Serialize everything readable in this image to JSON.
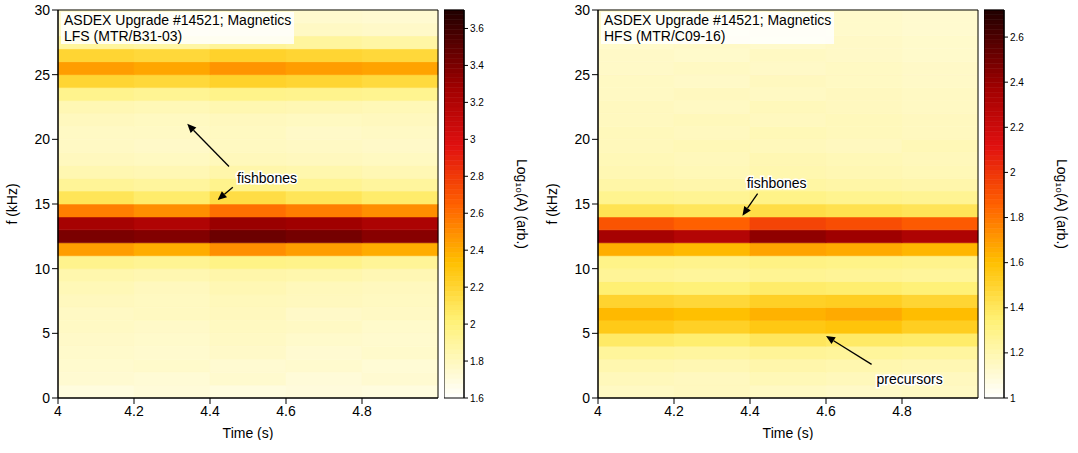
{
  "chart_data": [
    {
      "type": "heatmap",
      "title": "ASDEX Upgrade #14521; Magnetics",
      "subtitle": "LFS (MTR/B31-03)",
      "x_label": "Time (s)",
      "y_label": "f (kHz)",
      "xlim": [
        4,
        5
      ],
      "xticks": [
        4,
        4.2,
        4.4,
        4.6,
        4.8
      ],
      "ylim": [
        0,
        30
      ],
      "yticks": [
        0,
        5,
        10,
        15,
        20,
        25,
        30
      ],
      "x_bins": [
        4,
        4.2,
        4.4,
        4.6,
        4.8,
        5
      ],
      "y_bins": [
        0,
        1,
        2,
        3,
        4,
        5,
        6,
        7,
        8,
        9,
        10,
        11,
        12,
        13,
        14,
        15,
        16,
        17,
        18,
        19,
        20,
        21,
        22,
        23,
        24,
        25,
        26,
        27,
        28,
        29,
        30
      ],
      "cells": [
        [
          1.7,
          1.72,
          1.7,
          1.71,
          1.7
        ],
        [
          1.74,
          1.73,
          1.75,
          1.72,
          1.74
        ],
        [
          1.75,
          1.76,
          1.74,
          1.75,
          1.73
        ],
        [
          1.76,
          1.75,
          1.77,
          1.74,
          1.76
        ],
        [
          1.77,
          1.76,
          1.78,
          1.76,
          1.75
        ],
        [
          1.78,
          1.77,
          1.79,
          1.78,
          1.76
        ],
        [
          1.78,
          1.79,
          1.8,
          1.77,
          1.78
        ],
        [
          1.8,
          1.79,
          1.81,
          1.8,
          1.79
        ],
        [
          1.82,
          1.8,
          1.83,
          1.81,
          1.8
        ],
        [
          1.85,
          1.84,
          1.86,
          1.85,
          1.83
        ],
        [
          1.95,
          1.93,
          1.97,
          1.96,
          1.92
        ],
        [
          2.45,
          2.4,
          2.5,
          2.45,
          2.4
        ],
        [
          3.4,
          3.38,
          3.45,
          3.42,
          3.36
        ],
        [
          3.25,
          3.2,
          3.3,
          3.28,
          3.22
        ],
        [
          2.55,
          2.5,
          2.6,
          2.55,
          2.5
        ],
        [
          2.1,
          2.05,
          2.15,
          2.1,
          2.05
        ],
        [
          1.92,
          1.9,
          1.95,
          1.93,
          1.9
        ],
        [
          1.84,
          1.83,
          1.86,
          1.85,
          1.83
        ],
        [
          1.8,
          1.79,
          1.81,
          1.8,
          1.79
        ],
        [
          1.78,
          1.77,
          1.79,
          1.78,
          1.77
        ],
        [
          1.78,
          1.78,
          1.79,
          1.77,
          1.78
        ],
        [
          1.8,
          1.79,
          1.8,
          1.79,
          1.8
        ],
        [
          1.83,
          1.82,
          1.84,
          1.83,
          1.82
        ],
        [
          1.95,
          1.93,
          1.96,
          1.95,
          1.94
        ],
        [
          2.2,
          2.18,
          2.22,
          2.2,
          2.17
        ],
        [
          2.45,
          2.42,
          2.48,
          2.45,
          2.43
        ],
        [
          2.2,
          2.18,
          2.22,
          2.2,
          2.18
        ],
        [
          1.9,
          1.88,
          1.92,
          1.9,
          1.88
        ],
        [
          1.78,
          1.77,
          1.79,
          1.78,
          1.77
        ],
        [
          1.75,
          1.74,
          1.76,
          1.75,
          1.74
        ]
      ],
      "colorbar_range": [
        1.6,
        3.7
      ],
      "colorbar_ticks": [
        1.6,
        1.8,
        2,
        2.2,
        2.4,
        2.6,
        2.8,
        3,
        3.2,
        3.4,
        3.6
      ],
      "colorbar_label": "Log₁₀(A) (arb.)",
      "annotations": [
        {
          "text": "fishbones",
          "x": 4.55,
          "y": 17,
          "arrows": [
            [
              [
                4.45,
                17.9
              ],
              [
                4.34,
                21.2
              ]
            ],
            [
              [
                4.46,
                16.3
              ],
              [
                4.42,
                15.3
              ]
            ]
          ]
        }
      ]
    },
    {
      "type": "heatmap",
      "title": "ASDEX Upgrade #14521; Magnetics",
      "subtitle": "HFS (MTR/C09-16)",
      "x_label": "Time (s)",
      "y_label": "f (kHz)",
      "xlim": [
        4,
        5
      ],
      "xticks": [
        4,
        4.2,
        4.4,
        4.6,
        4.8
      ],
      "ylim": [
        0,
        30
      ],
      "yticks": [
        0,
        5,
        10,
        15,
        20,
        25,
        30
      ],
      "x_bins": [
        4,
        4.2,
        4.4,
        4.6,
        4.8,
        5
      ],
      "y_bins": [
        0,
        1,
        2,
        3,
        4,
        5,
        6,
        7,
        8,
        9,
        10,
        11,
        12,
        13,
        14,
        15,
        16,
        17,
        18,
        19,
        20,
        21,
        22,
        23,
        24,
        25,
        26,
        27,
        28,
        29,
        30
      ],
      "cells": [
        [
          1.15,
          1.16,
          1.15,
          1.14,
          1.15
        ],
        [
          1.17,
          1.16,
          1.18,
          1.17,
          1.16
        ],
        [
          1.2,
          1.19,
          1.21,
          1.2,
          1.19
        ],
        [
          1.25,
          1.24,
          1.26,
          1.25,
          1.24
        ],
        [
          1.38,
          1.36,
          1.4,
          1.38,
          1.37
        ],
        [
          1.55,
          1.52,
          1.56,
          1.58,
          1.53
        ],
        [
          1.62,
          1.6,
          1.64,
          1.66,
          1.61
        ],
        [
          1.5,
          1.48,
          1.52,
          1.53,
          1.49
        ],
        [
          1.35,
          1.34,
          1.37,
          1.36,
          1.34
        ],
        [
          1.26,
          1.25,
          1.27,
          1.26,
          1.25
        ],
        [
          1.3,
          1.29,
          1.31,
          1.3,
          1.29
        ],
        [
          1.65,
          1.62,
          1.68,
          1.66,
          1.63
        ],
        [
          2.35,
          2.3,
          2.42,
          2.38,
          2.32
        ],
        [
          1.9,
          1.86,
          1.95,
          1.92,
          1.88
        ],
        [
          1.42,
          1.4,
          1.45,
          1.43,
          1.41
        ],
        [
          1.28,
          1.27,
          1.3,
          1.28,
          1.27
        ],
        [
          1.22,
          1.21,
          1.23,
          1.22,
          1.21
        ],
        [
          1.19,
          1.18,
          1.2,
          1.19,
          1.18
        ],
        [
          1.18,
          1.17,
          1.19,
          1.18,
          1.17
        ],
        [
          1.17,
          1.18,
          1.17,
          1.16,
          1.18
        ],
        [
          1.17,
          1.16,
          1.18,
          1.17,
          1.16
        ],
        [
          1.16,
          1.17,
          1.16,
          1.17,
          1.16
        ],
        [
          1.16,
          1.15,
          1.17,
          1.16,
          1.15
        ],
        [
          1.15,
          1.16,
          1.15,
          1.16,
          1.15
        ],
        [
          1.15,
          1.14,
          1.16,
          1.15,
          1.14
        ],
        [
          1.14,
          1.15,
          1.14,
          1.15,
          1.14
        ],
        [
          1.14,
          1.13,
          1.15,
          1.14,
          1.13
        ],
        [
          1.13,
          1.14,
          1.13,
          1.14,
          1.13
        ],
        [
          1.13,
          1.12,
          1.14,
          1.13,
          1.12
        ],
        [
          1.12,
          1.13,
          1.12,
          1.13,
          1.12
        ]
      ],
      "colorbar_range": [
        1,
        2.72
      ],
      "colorbar_ticks": [
        1,
        1.2,
        1.4,
        1.6,
        1.8,
        2,
        2.2,
        2.4,
        2.6
      ],
      "colorbar_label": "Log₁₀(A) (arb.)",
      "annotations": [
        {
          "text": "fishbones",
          "x": 4.47,
          "y": 16.6,
          "arrows": [
            [
              [
                4.42,
                15.8
              ],
              [
                4.38,
                14.1
              ]
            ]
          ]
        },
        {
          "text": "precursors",
          "x": 4.82,
          "y": 1.5,
          "arrows": [
            [
              [
                4.72,
                2.6
              ],
              [
                4.6,
                4.8
              ]
            ]
          ]
        }
      ]
    }
  ]
}
